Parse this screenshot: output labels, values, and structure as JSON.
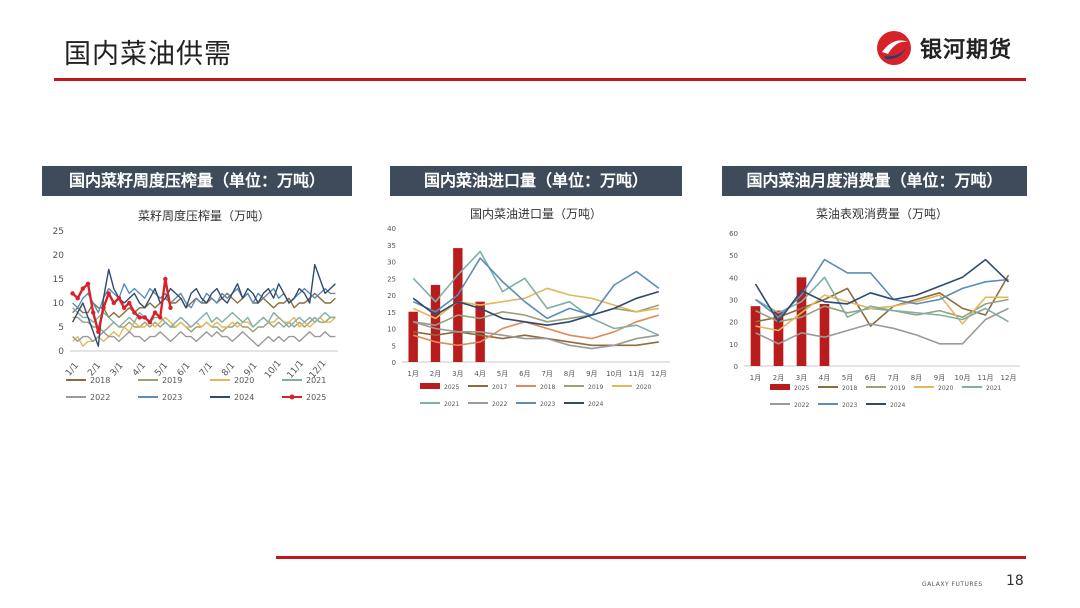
{
  "slide": {
    "title": "国内菜油供需",
    "logo_text": "银河期货",
    "footer_brand": "GALAXY FUTURES",
    "page_number": "18",
    "accent_color": "#c0161c",
    "header_bg": "#3e4b5a"
  },
  "panels": [
    {
      "header": "国内菜籽周度压榨量（单位：万吨）"
    },
    {
      "header": "国内菜油进口量（单位：万吨）"
    },
    {
      "header": "国内菜油月度消费量（单位：万吨）"
    }
  ],
  "chart_data": [
    {
      "type": "line",
      "title": "菜籽周度压榨量（万吨）",
      "xlabel": "",
      "ylabel": "",
      "ylim": [
        0,
        25
      ],
      "yticks": [
        "0",
        "5",
        "10",
        "15",
        "20",
        "25"
      ],
      "x_ticklabels": [
        "1/1",
        "2/1",
        "3/1",
        "4/1",
        "5/1",
        "6/1",
        "7/1",
        "8/1",
        "9/1",
        "10/1",
        "11/1",
        "12/1"
      ],
      "weeks": 52,
      "grid": false,
      "legend": "bottom",
      "series": [
        {
          "name": "2018",
          "color": "#8c6d3f",
          "values": [
            8,
            9,
            8,
            8,
            10,
            9,
            9,
            7,
            8,
            7,
            8,
            9,
            8,
            9,
            9,
            10,
            9,
            10,
            11,
            10,
            10,
            11,
            9,
            10,
            11,
            10,
            10,
            11,
            10,
            11,
            12,
            11,
            10,
            11,
            12,
            10,
            10,
            11,
            10,
            9,
            10,
            10,
            11,
            9,
            10,
            10,
            11,
            12,
            11,
            10,
            10,
            11
          ]
        },
        {
          "name": "2019",
          "color": "#9aa07a",
          "values": [
            7,
            7,
            6,
            6,
            5,
            5,
            4,
            5,
            6,
            5,
            5,
            6,
            5,
            5,
            6,
            5,
            6,
            5,
            6,
            5,
            5,
            6,
            5,
            4,
            5,
            5,
            6,
            5,
            5,
            4,
            5,
            5,
            6,
            5,
            5,
            4,
            5,
            5,
            6,
            5,
            6,
            5,
            6,
            5,
            6,
            5,
            6,
            7,
            6,
            6,
            7,
            7
          ]
        },
        {
          "name": "2020",
          "color": "#e2b85a",
          "values": [
            2,
            3,
            1,
            2,
            2,
            3,
            2,
            3,
            4,
            3,
            5,
            4,
            6,
            5,
            5,
            6,
            5,
            6,
            7,
            6,
            5,
            6,
            5,
            5,
            6,
            5,
            6,
            5,
            6,
            5,
            5,
            6,
            5,
            6,
            6,
            5,
            6,
            7,
            6,
            6,
            7,
            6,
            6,
            7,
            5,
            6,
            5,
            6,
            7,
            6,
            6,
            7
          ]
        },
        {
          "name": "2021",
          "color": "#7fb0a8",
          "values": [
            9,
            8,
            7,
            7,
            6,
            7,
            8,
            7,
            6,
            5,
            6,
            7,
            6,
            8,
            7,
            6,
            7,
            7,
            6,
            5,
            6,
            7,
            6,
            5,
            6,
            7,
            8,
            6,
            7,
            6,
            7,
            8,
            7,
            6,
            7,
            5,
            6,
            7,
            6,
            8,
            7,
            6,
            5,
            6,
            7,
            6,
            7,
            6,
            7,
            8,
            7,
            7
          ]
        },
        {
          "name": "2022",
          "color": "#9a9a9a",
          "values": [
            3,
            2,
            3,
            3,
            2,
            3,
            4,
            3,
            3,
            2,
            3,
            4,
            3,
            3,
            2,
            3,
            3,
            4,
            3,
            2,
            3,
            4,
            3,
            3,
            2,
            3,
            4,
            3,
            4,
            3,
            3,
            2,
            3,
            4,
            3,
            2,
            1,
            2,
            3,
            2,
            3,
            2,
            3,
            3,
            2,
            3,
            4,
            3,
            3,
            4,
            3,
            3
          ]
        },
        {
          "name": "2023",
          "color": "#5b8db8",
          "values": [
            10,
            9,
            11,
            12,
            10,
            8,
            11,
            13,
            12,
            11,
            14,
            12,
            13,
            12,
            11,
            13,
            12,
            11,
            12,
            10,
            11,
            12,
            10,
            9,
            11,
            10,
            12,
            11,
            10,
            12,
            11,
            12,
            13,
            11,
            12,
            10,
            12,
            11,
            12,
            13,
            11,
            12,
            10,
            11,
            12,
            13,
            12,
            11,
            12,
            13,
            12,
            12
          ]
        },
        {
          "name": "2024",
          "color": "#2f4a6d",
          "values": [
            6,
            8,
            10,
            7,
            4,
            1,
            11,
            17,
            13,
            11,
            10,
            11,
            12,
            10,
            9,
            11,
            13,
            10,
            11,
            13,
            12,
            11,
            9,
            12,
            13,
            11,
            10,
            12,
            13,
            11,
            10,
            12,
            14,
            11,
            13,
            12,
            10,
            12,
            13,
            11,
            14,
            12,
            10,
            11,
            13,
            12,
            10,
            18,
            15,
            12,
            13,
            14
          ]
        },
        {
          "name": "2025",
          "color": "#d6232a",
          "values": [
            12,
            11,
            13,
            14,
            8,
            4,
            9,
            12,
            10,
            11,
            9,
            10,
            8,
            7,
            7,
            6,
            8,
            7,
            15,
            9
          ]
        }
      ]
    },
    {
      "type": "bar+line",
      "title": "国内菜油进口量（万吨）",
      "xlabel": "",
      "ylabel": "",
      "ylim": [
        0,
        40
      ],
      "yticks": [
        "0",
        "5",
        "10",
        "15",
        "20",
        "25",
        "30",
        "35",
        "40"
      ],
      "categories": [
        "1月",
        "2月",
        "3月",
        "4月",
        "5月",
        "6月",
        "7月",
        "8月",
        "9月",
        "10月",
        "11月",
        "12月"
      ],
      "grid": false,
      "legend": "bottom",
      "bars": {
        "name": "2025",
        "color": "#b81c1c",
        "values": [
          15,
          23,
          34,
          18
        ]
      },
      "series": [
        {
          "name": "2017",
          "color": "#8c6d3f",
          "values": [
            9,
            8,
            9,
            8,
            7,
            8,
            7,
            6,
            5,
            5,
            5,
            6
          ]
        },
        {
          "name": "2018",
          "color": "#e08a5a",
          "values": [
            8,
            6,
            5,
            6,
            10,
            12,
            10,
            8,
            7,
            9,
            12,
            14
          ]
        },
        {
          "name": "2019",
          "color": "#9aa07a",
          "values": [
            12,
            11,
            14,
            13,
            15,
            14,
            12,
            13,
            14,
            16,
            15,
            17
          ]
        },
        {
          "name": "2020",
          "color": "#e2b85a",
          "values": [
            16,
            13,
            18,
            17,
            18,
            19,
            22,
            20,
            19,
            17,
            15,
            16
          ]
        },
        {
          "name": "2021",
          "color": "#7fb0a8",
          "values": [
            25,
            18,
            26,
            33,
            21,
            25,
            16,
            18,
            13,
            10,
            11,
            8
          ]
        },
        {
          "name": "2022",
          "color": "#9a9a9a",
          "values": [
            12,
            10,
            9,
            9,
            8,
            7,
            7,
            5,
            4,
            5,
            7,
            8
          ]
        },
        {
          "name": "2023",
          "color": "#5b8db8",
          "values": [
            18,
            15,
            20,
            31,
            24,
            18,
            13,
            16,
            14,
            23,
            27,
            22
          ]
        },
        {
          "name": "2024",
          "color": "#2f4a6d",
          "values": [
            19,
            14,
            18,
            16,
            13,
            12,
            11,
            12,
            14,
            16,
            19,
            21
          ]
        }
      ]
    },
    {
      "type": "bar+line",
      "title": "菜油表观消费量（万吨）",
      "xlabel": "",
      "ylabel": "",
      "ylim": [
        0,
        60
      ],
      "yticks": [
        "0",
        "10",
        "20",
        "30",
        "40",
        "50",
        "60"
      ],
      "categories": [
        "1月",
        "2月",
        "3月",
        "4月",
        "5月",
        "6月",
        "7月",
        "8月",
        "9月",
        "10月",
        "11月",
        "12月"
      ],
      "grid": false,
      "legend": "bottom",
      "bars": {
        "name": "2025",
        "color": "#b81c1c",
        "values": [
          27,
          25,
          40,
          28
        ]
      },
      "series": [
        {
          "name": "2018",
          "color": "#8c6d3f",
          "values": [
            20,
            22,
            26,
            30,
            35,
            18,
            27,
            30,
            33,
            26,
            23,
            41
          ]
        },
        {
          "name": "2019",
          "color": "#9aa07a",
          "values": [
            25,
            20,
            22,
            27,
            24,
            26,
            25,
            23,
            25,
            22,
            28,
            30
          ]
        },
        {
          "name": "2020",
          "color": "#e2b85a",
          "values": [
            18,
            16,
            24,
            32,
            29,
            26,
            27,
            29,
            32,
            19,
            31,
            31
          ]
        },
        {
          "name": "2021",
          "color": "#7fb0a8",
          "values": [
            30,
            24,
            29,
            40,
            22,
            27,
            25,
            24,
            23,
            21,
            26,
            20
          ]
        },
        {
          "name": "2022",
          "color": "#9a9a9a",
          "values": [
            15,
            10,
            15,
            13,
            16,
            19,
            17,
            14,
            10,
            10,
            21,
            26
          ]
        },
        {
          "name": "2023",
          "color": "#5b8db8",
          "values": [
            30,
            22,
            32,
            48,
            42,
            42,
            30,
            28,
            30,
            35,
            38,
            39
          ]
        },
        {
          "name": "2024",
          "color": "#2f4a6d",
          "values": [
            37,
            20,
            34,
            29,
            28,
            33,
            30,
            32,
            36,
            40,
            48,
            38
          ]
        }
      ]
    }
  ]
}
